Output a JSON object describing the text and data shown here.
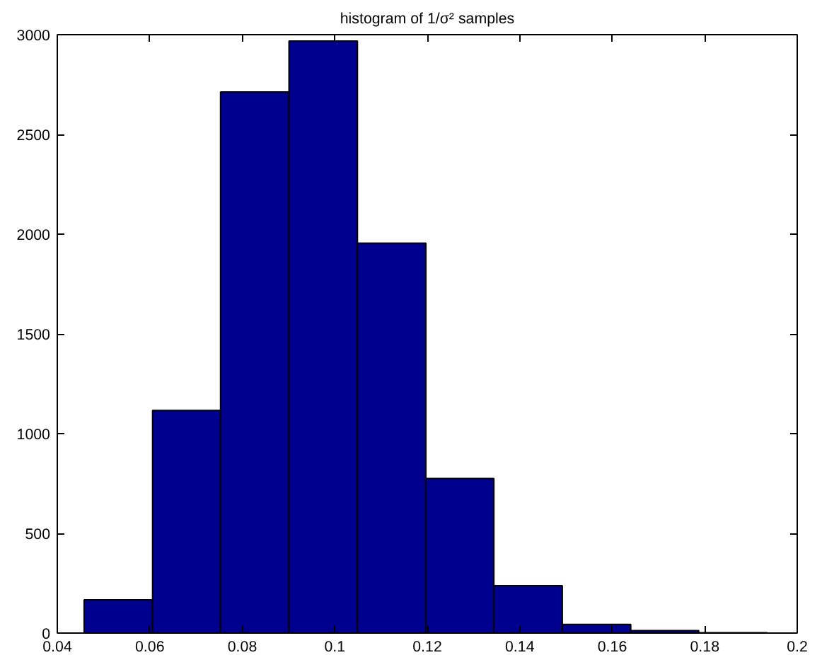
{
  "chart_data": {
    "type": "histogram",
    "title": "histogram of 1/σ² samples",
    "bins": [
      0.0458,
      0.0606,
      0.0753,
      0.0901,
      0.1049,
      0.1197,
      0.1344,
      0.1492,
      0.164,
      0.1787,
      0.1935
    ],
    "values": [
      167,
      1116,
      2713,
      2968,
      1955,
      775,
      238,
      43,
      12,
      2
    ],
    "color": "#00008f",
    "xlim": [
      0.04,
      0.2
    ],
    "xticks": [
      0.04,
      0.06,
      0.08,
      0.1,
      0.12,
      0.14,
      0.16,
      0.18,
      0.2
    ],
    "ylim": [
      0,
      3000
    ],
    "yticks": [
      0,
      500,
      1000,
      1500,
      2000,
      2500,
      3000
    ],
    "grid": false
  }
}
